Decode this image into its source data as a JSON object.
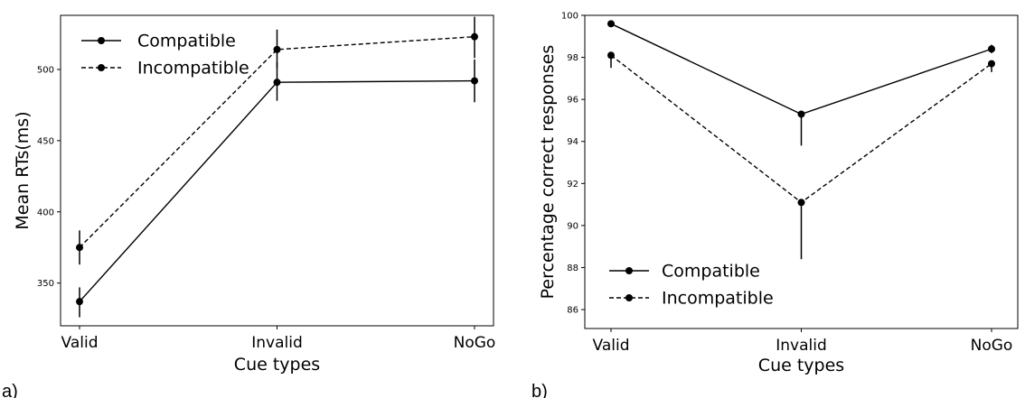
{
  "chart_data": [
    {
      "type": "line",
      "panel_label": "a)",
      "title": "",
      "xlabel": "Cue types",
      "ylabel": "Mean RTs(ms)",
      "categories": [
        "Valid",
        "Invalid",
        "NoGo"
      ],
      "ylim": [
        320,
        538
      ],
      "yticks": [
        350,
        400,
        450,
        500
      ],
      "grid": false,
      "legend_position": "top-left",
      "series": [
        {
          "name": "Compatible",
          "linestyle": "solid",
          "values": [
            337,
            491,
            492
          ],
          "err_low": [
            326,
            478,
            477
          ],
          "err_high": [
            347,
            505,
            507
          ]
        },
        {
          "name": "Incompatible",
          "linestyle": "dashed",
          "values": [
            375,
            514,
            523
          ],
          "err_low": [
            363,
            501,
            508
          ],
          "err_high": [
            387,
            528,
            537
          ]
        }
      ]
    },
    {
      "type": "line",
      "panel_label": "b)",
      "title": "",
      "xlabel": "Cue types",
      "ylabel": "Percentage correct responses",
      "categories": [
        "Valid",
        "Invalid",
        "NoGo"
      ],
      "ylim": [
        85.1,
        100.0
      ],
      "yticks": [
        86,
        88,
        90,
        92,
        94,
        96,
        98,
        100
      ],
      "grid": false,
      "legend_position": "bottom-left",
      "series": [
        {
          "name": "Compatible",
          "linestyle": "solid",
          "values": [
            99.6,
            95.3,
            98.4
          ],
          "err_low": [
            99.6,
            93.8,
            98.2
          ],
          "err_high": [
            99.6,
            95.3,
            98.6
          ]
        },
        {
          "name": "Incompatible",
          "linestyle": "dashed",
          "values": [
            98.1,
            91.1,
            97.7
          ],
          "err_low": [
            97.5,
            88.4,
            97.3
          ],
          "err_high": [
            98.1,
            91.1,
            97.8
          ]
        }
      ]
    }
  ]
}
